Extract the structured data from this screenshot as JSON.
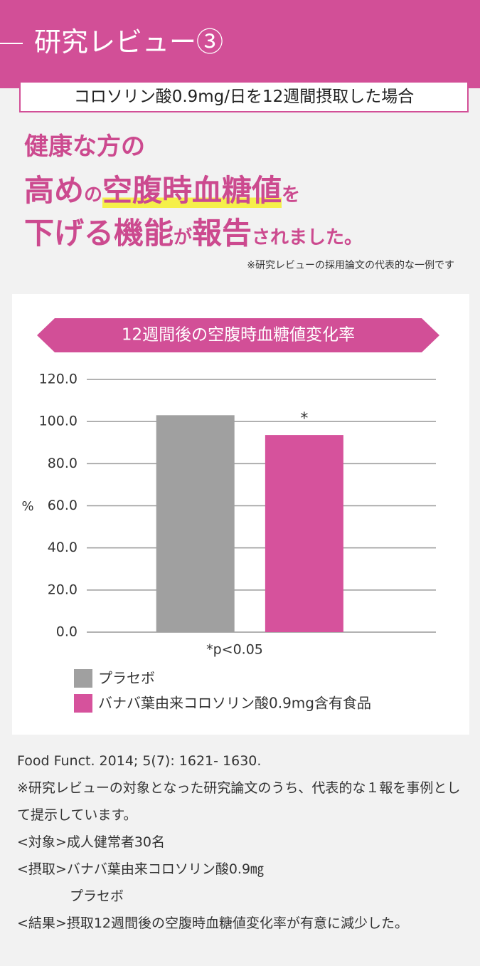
{
  "header": {
    "title": "研究レビュー③",
    "subtitle": "コロソリン酸0.9mg/日を12週間摂取した場合"
  },
  "headline": {
    "lines": [
      [
        "健康な方の"
      ],
      [
        "高め",
        "の",
        "空腹時血糖値",
        "を"
      ],
      [
        "下げる機能",
        "が",
        "報告",
        "されました。"
      ]
    ],
    "note": "※研究レビューの採用論文の代表的な一例です"
  },
  "chart_data": {
    "type": "bar",
    "title": "12週間後の空腹時血糖値変化率",
    "y_label": "%",
    "categories": [
      null
    ],
    "series": [
      {
        "name": "プラセボ",
        "color": "#a0a0a0",
        "values": [
          103
        ]
      },
      {
        "name": "バナバ葉由来コロソリン酸0.9mg含有食品",
        "color": "#d6529c",
        "values": [
          93.6
        ]
      }
    ],
    "annotation": "*",
    "note": "*p<0.05",
    "ylim": [
      0,
      120
    ],
    "yticks": [
      {
        "value": 0,
        "label": "0.0"
      },
      {
        "value": 20,
        "label": "20.0"
      },
      {
        "value": 40,
        "label": "40.0"
      },
      {
        "value": 60,
        "label": "60.0"
      },
      {
        "value": 80,
        "label": "80.0"
      },
      {
        "value": 100,
        "label": "100.0"
      },
      {
        "value": 120,
        "label": "120.0"
      }
    ],
    "grid": true
  },
  "reference": {
    "citation": "Food Funct. 2014; 5(7): 1621- 1630.",
    "lines": [
      "※研究レビューの対象となった研究論文のうち、代表的な１報を事例として提示しています。",
      "<対象>成人健常者30名",
      "<摂取>バナバ葉由来コロソリン酸0.9㎎",
      "プラセボ",
      "<結果>摂取12週間後の空腹時血糖値変化率が有意に減少した。"
    ]
  }
}
